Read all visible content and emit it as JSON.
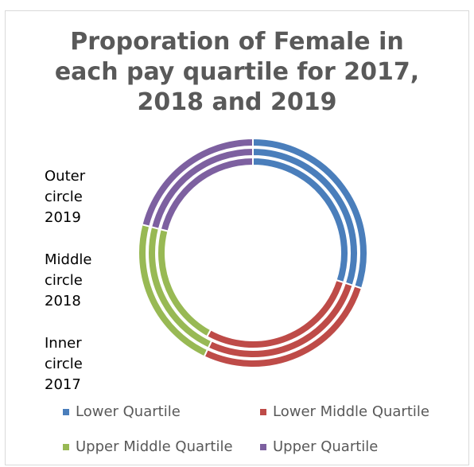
{
  "chart_data": {
    "type": "doughnut",
    "title_lines": [
      "Proporation of Female in",
      "each pay quartile for 2017,",
      "2018 and 2019"
    ],
    "categories": [
      "Lower Quartile",
      "Lower Middle Quartile",
      "Upper Middle Quartile",
      "Upper Quartile"
    ],
    "colors": [
      "#4a7ebb",
      "#be4b48",
      "#98b954",
      "#7d60a0"
    ],
    "series": [
      {
        "name": "2019",
        "ring": "outer",
        "values": [
          30,
          27,
          22,
          21
        ]
      },
      {
        "name": "2018",
        "ring": "middle",
        "values": [
          30,
          27,
          22,
          21
        ]
      },
      {
        "name": "2017",
        "ring": "inner",
        "values": [
          30,
          28,
          21,
          21
        ]
      }
    ],
    "annotations": [
      {
        "lines": [
          "Outer",
          "circle",
          "2019"
        ]
      },
      {
        "lines": [
          "Middle",
          "circle",
          "2018"
        ]
      },
      {
        "lines": [
          "Inner",
          "circle",
          "2017"
        ]
      }
    ],
    "legend_position": "bottom"
  }
}
